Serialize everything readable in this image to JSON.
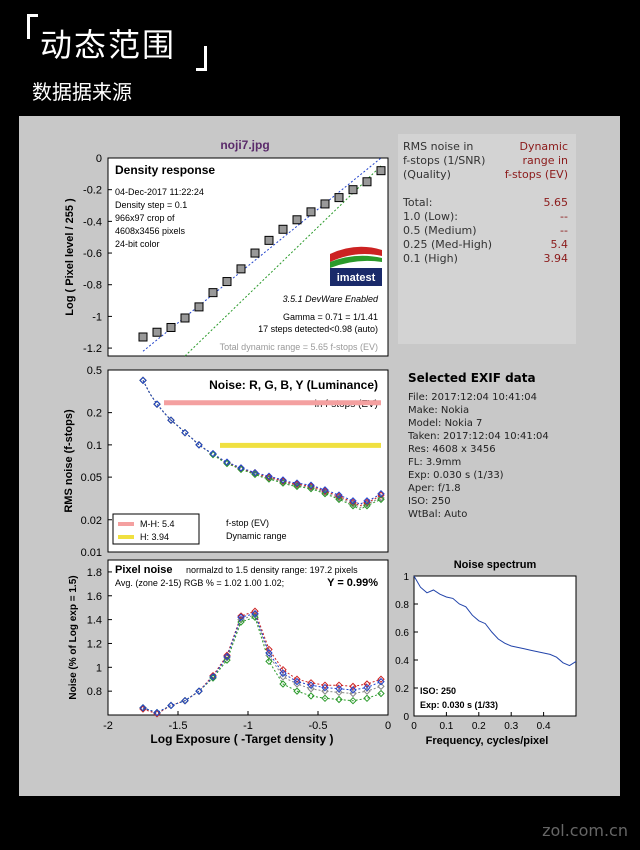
{
  "header": {
    "title": "动态范围",
    "subtitle": "数据据来源"
  },
  "file_title": "noji7.jpg",
  "rms_legend": {
    "title": [
      "RMS noise in",
      "f-stops (1/SNR)",
      "(Quality)"
    ],
    "right_title": [
      "Dynamic",
      "range in",
      "f-stops (EV)"
    ],
    "rows": [
      {
        "label": "Total:",
        "value": "5.65"
      },
      {
        "label": "1.0  (Low):",
        "value": "--"
      },
      {
        "label": "0.5  (Medium)",
        "value": "--"
      },
      {
        "label": "0.25 (Med-High)",
        "value": "5.4"
      },
      {
        "label": "0.1  (High)",
        "value": "3.94"
      }
    ]
  },
  "exif": {
    "heading": "Selected EXIF data",
    "lines": [
      "File:  2017:12:04 10:41:04",
      "Make:  Nokia",
      "Model: Nokia 7",
      "Taken:  2017:12:04 10:41:04",
      "Res:    4608 x 3456",
      "FL:   3.9mm",
      "Exp:   0.030 s  (1/33)",
      "Aper:  f/1.8",
      "ISO:   250",
      "WtBal: Auto"
    ]
  },
  "watermark": "zol.com.cn",
  "chart_data": [
    {
      "type": "scatter",
      "title": "Density response",
      "ylabel": "Log ( Pixel level / 255 )",
      "ylim": [
        -1.25,
        0
      ],
      "xlim": [
        -2,
        0
      ],
      "yticks": [
        "0",
        "-0.2",
        "-0.4",
        "-0.6",
        "-0.8",
        "-1",
        "-1.2"
      ],
      "info": [
        "04-Dec-2017 11:22:24",
        "Density step = 0.1",
        "966x97 crop of",
        "4608x3456 pixels",
        "24-bit color"
      ],
      "logo": "imatest",
      "version": "3.5.1  DevWare Enabled",
      "annotations": [
        "Gamma = 0.71 = 1/1.41",
        "17 steps detected<0.98 (auto)",
        "Total dynamic range = 5.65 f-stops (EV)"
      ],
      "x": [
        -1.75,
        -1.65,
        -1.55,
        -1.45,
        -1.35,
        -1.25,
        -1.15,
        -1.05,
        -0.95,
        -0.85,
        -0.75,
        -0.65,
        -0.55,
        -0.45,
        -0.35,
        -0.25,
        -0.15,
        -0.05
      ],
      "y": [
        -1.13,
        -1.1,
        -1.07,
        -1.01,
        -0.94,
        -0.85,
        -0.78,
        -0.7,
        -0.6,
        -0.52,
        -0.45,
        -0.39,
        -0.34,
        -0.29,
        -0.25,
        -0.2,
        -0.15,
        -0.08
      ]
    },
    {
      "type": "line",
      "title": "Noise: R, G, B, Y (Luminance)",
      "ylabel": "RMS noise (f-stops)",
      "yscale": "log",
      "ylim": [
        0.01,
        0.5
      ],
      "yticks": [
        "0.5",
        "0.2",
        "0.1",
        "0.05",
        "0.02",
        "0.01"
      ],
      "bar_label": "in f-stops (EV)",
      "legend": [
        {
          "name": "M-H: 5.4",
          "color": "#f4a0a0"
        },
        {
          "name": "H:    3.94",
          "color": "#f0e040"
        }
      ],
      "legend_right": [
        "f-stop (EV)",
        "Dynamic range"
      ],
      "x": [
        -1.75,
        -1.7,
        -1.65,
        -1.6,
        -1.55,
        -1.5,
        -1.45,
        -1.4,
        -1.35,
        -1.3,
        -1.25,
        -1.2,
        -1.15,
        -1.1,
        -1.05,
        -1.0,
        -0.95,
        -0.9,
        -0.85,
        -0.8,
        -0.75,
        -0.7,
        -0.65,
        -0.6,
        -0.55,
        -0.5,
        -0.45,
        -0.4,
        -0.35,
        -0.3,
        -0.25,
        -0.2,
        -0.15,
        -0.1,
        -0.05
      ],
      "series": [
        {
          "color": "#888888",
          "values": [
            0.4,
            0.3,
            0.24,
            0.2,
            0.17,
            0.15,
            0.13,
            0.115,
            0.1,
            0.09,
            0.082,
            0.074,
            0.068,
            0.064,
            0.06,
            0.057,
            0.054,
            0.051,
            0.049,
            0.047,
            0.045,
            0.043,
            0.042,
            0.041,
            0.04,
            0.038,
            0.036,
            0.034,
            0.032,
            0.03,
            0.028,
            0.026,
            0.028,
            0.03,
            0.032
          ]
        },
        {
          "color": "#cc2222",
          "values": [
            0.4,
            0.3,
            0.24,
            0.2,
            0.17,
            0.15,
            0.13,
            0.115,
            0.1,
            0.09,
            0.082,
            0.074,
            0.068,
            0.064,
            0.06,
            0.057,
            0.055,
            0.052,
            0.05,
            0.048,
            0.046,
            0.044,
            0.043,
            0.042,
            0.041,
            0.039,
            0.037,
            0.035,
            0.033,
            0.031,
            0.029,
            0.027,
            0.029,
            0.031,
            0.034
          ]
        },
        {
          "color": "#2a9a2a",
          "values": [
            0.4,
            0.3,
            0.24,
            0.2,
            0.17,
            0.15,
            0.13,
            0.115,
            0.1,
            0.09,
            0.081,
            0.073,
            0.067,
            0.063,
            0.059,
            0.056,
            0.053,
            0.05,
            0.048,
            0.046,
            0.044,
            0.042,
            0.041,
            0.04,
            0.039,
            0.037,
            0.035,
            0.033,
            0.031,
            0.029,
            0.027,
            0.025,
            0.027,
            0.029,
            0.031
          ]
        },
        {
          "color": "#2244cc",
          "values": [
            0.4,
            0.3,
            0.24,
            0.2,
            0.17,
            0.15,
            0.13,
            0.115,
            0.1,
            0.09,
            0.083,
            0.075,
            0.069,
            0.065,
            0.061,
            0.058,
            0.055,
            0.053,
            0.051,
            0.049,
            0.047,
            0.045,
            0.044,
            0.043,
            0.042,
            0.04,
            0.038,
            0.036,
            0.034,
            0.032,
            0.03,
            0.028,
            0.03,
            0.032,
            0.035
          ]
        }
      ]
    },
    {
      "type": "line",
      "title": "Pixel noise",
      "subtitle": "normalzd to 1.5 density range: 197.2 pixels",
      "stats": "Avg. (zone 2-15) RGB % = 1.02  1.00  1.02;",
      "stats_y": "Y = 0.99%",
      "xlabel": "Log Exposure ( -Target density )",
      "ylabel": "Noise (% of Log exp = 1.5)",
      "xlim": [
        -2,
        0
      ],
      "ylim": [
        0.6,
        1.9
      ],
      "xticks": [
        "-2",
        "-1.5",
        "-1",
        "-0.5",
        "0"
      ],
      "yticks": [
        "1.8",
        "1.6",
        "1.4",
        "1.2",
        "1",
        "0.8"
      ],
      "x": [
        -1.75,
        -1.65,
        -1.55,
        -1.45,
        -1.35,
        -1.25,
        -1.15,
        -1.05,
        -0.95,
        -0.85,
        -0.75,
        -0.65,
        -0.55,
        -0.45,
        -0.35,
        -0.25,
        -0.15,
        -0.05
      ],
      "series": [
        {
          "color": "#888888",
          "values": [
            0.66,
            0.62,
            0.68,
            0.72,
            0.8,
            0.92,
            1.08,
            1.4,
            1.44,
            1.1,
            0.92,
            0.86,
            0.82,
            0.8,
            0.79,
            0.78,
            0.8,
            0.84
          ]
        },
        {
          "color": "#cc2222",
          "values": [
            0.65,
            0.61,
            0.68,
            0.72,
            0.8,
            0.93,
            1.1,
            1.43,
            1.47,
            1.15,
            0.98,
            0.9,
            0.87,
            0.85,
            0.85,
            0.84,
            0.86,
            0.9
          ]
        },
        {
          "color": "#2a9a2a",
          "values": [
            0.66,
            0.62,
            0.68,
            0.72,
            0.8,
            0.91,
            1.06,
            1.38,
            1.42,
            1.05,
            0.86,
            0.8,
            0.76,
            0.74,
            0.73,
            0.72,
            0.74,
            0.78
          ]
        },
        {
          "color": "#2244cc",
          "values": [
            0.66,
            0.62,
            0.68,
            0.72,
            0.8,
            0.92,
            1.09,
            1.42,
            1.45,
            1.12,
            0.95,
            0.88,
            0.85,
            0.83,
            0.82,
            0.81,
            0.83,
            0.88
          ]
        }
      ]
    },
    {
      "type": "line",
      "title": "Noise spectrum",
      "xlabel": "Frequency, cycles/pixel",
      "xlim": [
        0,
        0.5
      ],
      "ylim": [
        0,
        1
      ],
      "xticks": [
        "0",
        "0.1",
        "0.2",
        "0.3",
        "0.4"
      ],
      "yticks": [
        "1",
        "0.8",
        "0.6",
        "0.4",
        "0.2",
        "0"
      ],
      "annotations": [
        "ISO:   250",
        "Exp:   0.030 s   (1/33)"
      ],
      "x": [
        0,
        0.02,
        0.04,
        0.06,
        0.08,
        0.1,
        0.12,
        0.14,
        0.16,
        0.18,
        0.2,
        0.22,
        0.24,
        0.26,
        0.28,
        0.3,
        0.32,
        0.34,
        0.36,
        0.38,
        0.4,
        0.42,
        0.44,
        0.46,
        0.48,
        0.5
      ],
      "y": [
        1.0,
        0.92,
        0.88,
        0.9,
        0.87,
        0.85,
        0.84,
        0.8,
        0.78,
        0.72,
        0.68,
        0.66,
        0.6,
        0.55,
        0.52,
        0.5,
        0.49,
        0.48,
        0.47,
        0.46,
        0.45,
        0.44,
        0.42,
        0.38,
        0.36,
        0.39
      ]
    }
  ]
}
